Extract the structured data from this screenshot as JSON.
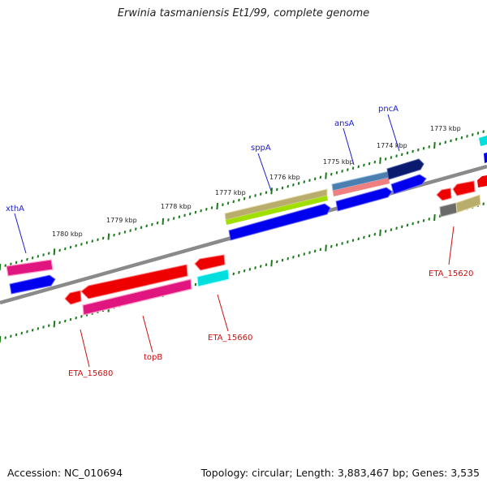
{
  "title": "Erwinia tasmaniensis Et1/99, complete genome",
  "accession": "Accession: NC_010694",
  "summary": "Topology: circular; Length: 3,883,467 bp; Genes: 3,535",
  "ruler_labels": [
    {
      "text": "1780 kbp",
      "kbp": 1780
    },
    {
      "text": "1779 kbp",
      "kbp": 1779
    },
    {
      "text": "1778 kbp",
      "kbp": 1778
    },
    {
      "text": "1777 kbp",
      "kbp": 1777
    },
    {
      "text": "1776 kbp",
      "kbp": 1776
    },
    {
      "text": "1775 kbp",
      "kbp": 1775
    },
    {
      "text": "1774 kbp",
      "kbp": 1774
    },
    {
      "text": "1773 kbp",
      "kbp": 1773
    }
  ],
  "gene_labels": {
    "forward": [
      "xthA",
      "sppA",
      "ansA",
      "pncA"
    ],
    "reverse": [
      "ETA_15680",
      "topB",
      "ETA_15660",
      "ETA_15620"
    ]
  },
  "colors": {
    "backbone": "#8a8a8a",
    "ruler": "#1a7a1a",
    "forward_label": "#1a1ad0",
    "reverse_label": "#cc1111",
    "blue": "#0000ee",
    "navy": "#0a1a6e",
    "red": "#ee0000",
    "magenta": "#e0157f",
    "cyan": "#00dede",
    "olive": "#b9ad6e",
    "lime": "#a0e000",
    "steel": "#4a7fb0",
    "salmon": "#f08080",
    "gray": "#6a6a6a"
  }
}
